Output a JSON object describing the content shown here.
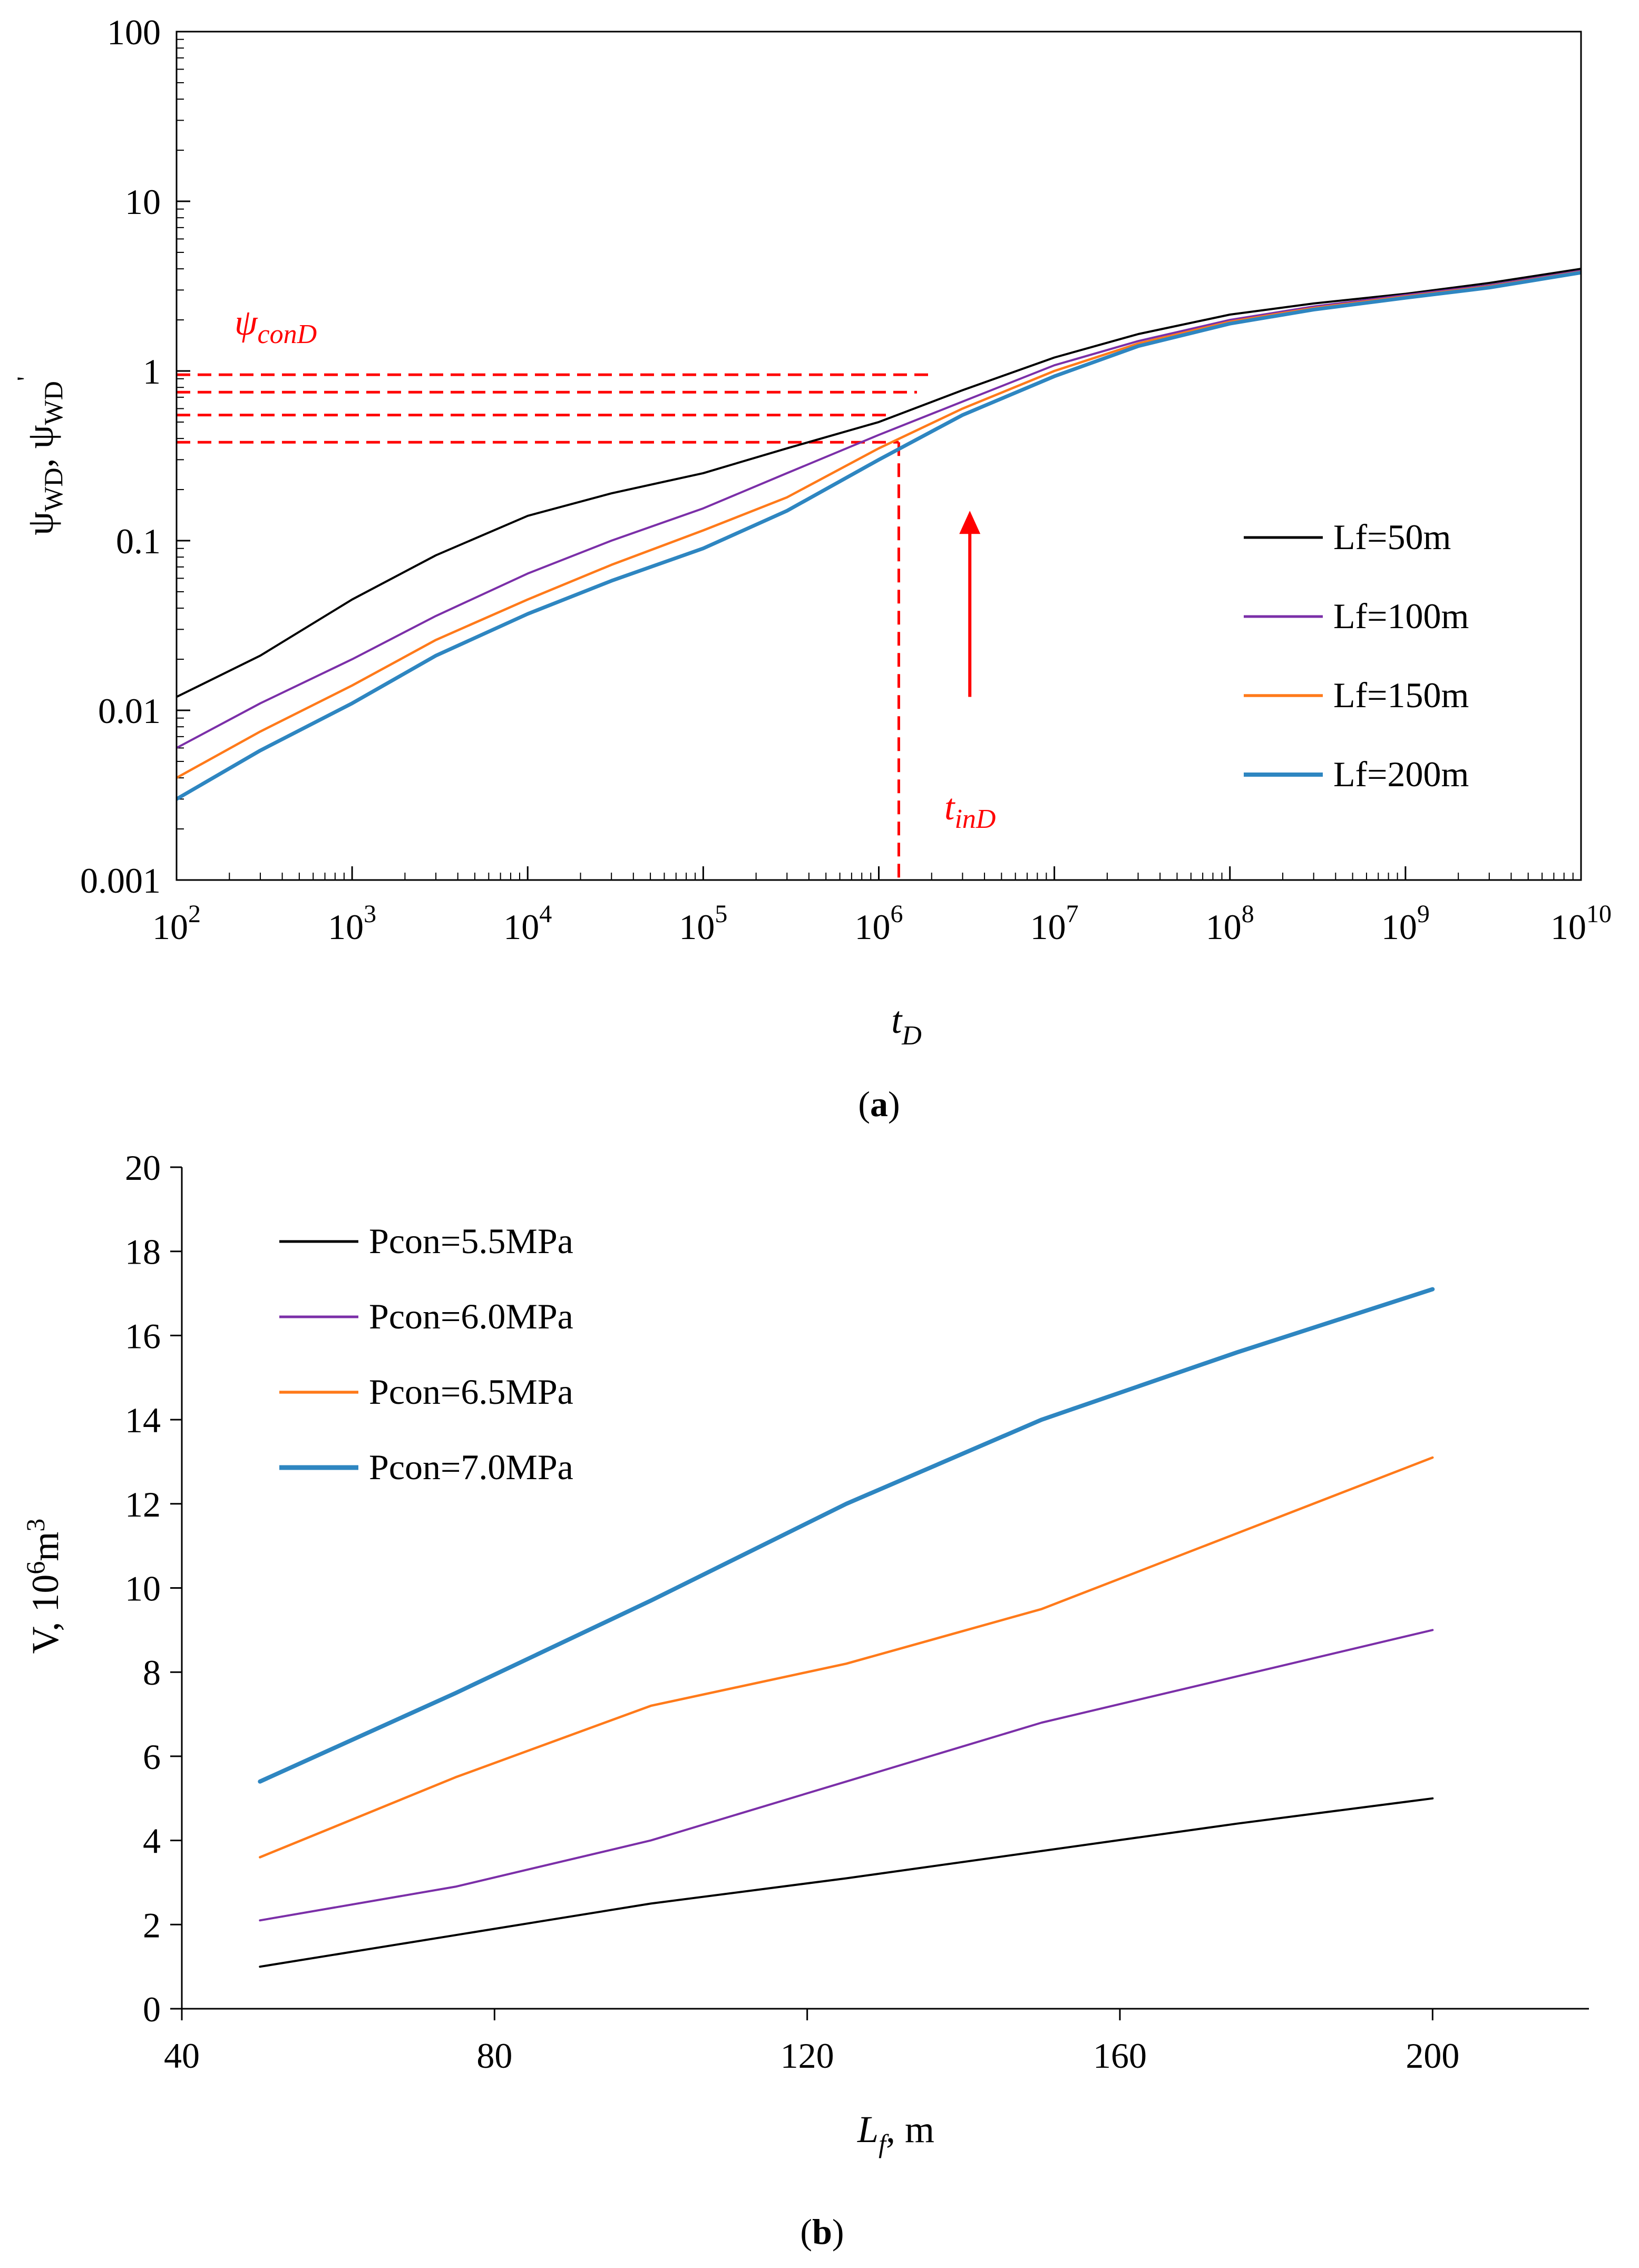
{
  "chart_data": [
    {
      "panel": "(a)",
      "panel_letter": "a",
      "type": "line",
      "scale": "log-log",
      "xlabel": "t",
      "xlabel_sub": "D",
      "ylabel": "ψWD, ψWD'",
      "ylabel_parts": {
        "psi1": "ψ",
        "sub1": "WD",
        "sep": ", ",
        "psi2": "ψ",
        "sub2": "WD",
        "prime": "'"
      },
      "xlim": [
        100,
        10000000000
      ],
      "ylim": [
        0.001,
        100
      ],
      "x_ticks": [
        {
          "value": 100,
          "base": "10",
          "exp": "2"
        },
        {
          "value": 1000,
          "base": "10",
          "exp": "3"
        },
        {
          "value": 10000,
          "base": "10",
          "exp": "4"
        },
        {
          "value": 100000,
          "base": "10",
          "exp": "5"
        },
        {
          "value": 1000000,
          "base": "10",
          "exp": "6"
        },
        {
          "value": 10000000,
          "base": "10",
          "exp": "7"
        },
        {
          "value": 100000000,
          "base": "10",
          "exp": "8"
        },
        {
          "value": 1000000000,
          "base": "10",
          "exp": "9"
        },
        {
          "value": 10000000000,
          "base": "10",
          "exp": "10"
        }
      ],
      "y_ticks": [
        {
          "value": 0.001,
          "label": "0.001"
        },
        {
          "value": 0.01,
          "label": "0.01"
        },
        {
          "value": 0.1,
          "label": "0.1"
        },
        {
          "value": 1,
          "label": "1"
        },
        {
          "value": 10,
          "label": "10"
        },
        {
          "value": 100,
          "label": "100"
        }
      ],
      "series": [
        {
          "name": "Lf=50m",
          "color": "#000000",
          "width": 4,
          "x": [
            100,
            300,
            1000,
            3000,
            10000,
            30000,
            100000,
            300000,
            1000000,
            3000000,
            10000000,
            30000000,
            100000000,
            300000000,
            1000000000,
            3000000000,
            10000000000
          ],
          "y": [
            0.012,
            0.021,
            0.045,
            0.082,
            0.14,
            0.19,
            0.25,
            0.35,
            0.5,
            0.77,
            1.2,
            1.65,
            2.15,
            2.5,
            2.85,
            3.3,
            4.0
          ]
        },
        {
          "name": "Lf=100m",
          "color": "#7b2fa8",
          "width": 4,
          "x": [
            100,
            300,
            1000,
            3000,
            10000,
            30000,
            100000,
            300000,
            1000000,
            3000000,
            10000000,
            30000000,
            100000000,
            300000000,
            1000000000,
            3000000000,
            10000000000
          ],
          "y": [
            0.006,
            0.011,
            0.02,
            0.036,
            0.064,
            0.1,
            0.155,
            0.25,
            0.42,
            0.66,
            1.08,
            1.5,
            2.0,
            2.4,
            2.8,
            3.2,
            3.9
          ]
        },
        {
          "name": "Lf=150m",
          "color": "#ff7a1a",
          "width": 4.5,
          "x": [
            100,
            300,
            1000,
            3000,
            10000,
            30000,
            100000,
            300000,
            1000000,
            3000000,
            10000000,
            30000000,
            100000000,
            300000000,
            1000000000,
            3000000000,
            10000000000
          ],
          "y": [
            0.004,
            0.0075,
            0.014,
            0.026,
            0.045,
            0.072,
            0.115,
            0.18,
            0.35,
            0.6,
            1.0,
            1.45,
            1.95,
            2.35,
            2.75,
            3.15,
            3.85
          ]
        },
        {
          "name": "Lf=200m",
          "color": "#2e86c1",
          "width": 7,
          "x": [
            100,
            300,
            1000,
            3000,
            10000,
            30000,
            100000,
            300000,
            1000000,
            3000000,
            10000000,
            30000000,
            100000000,
            300000000,
            1000000000,
            3000000000,
            10000000000
          ],
          "y": [
            0.003,
            0.0058,
            0.011,
            0.021,
            0.037,
            0.058,
            0.09,
            0.15,
            0.3,
            0.55,
            0.93,
            1.4,
            1.9,
            2.3,
            2.7,
            3.1,
            3.8
          ]
        }
      ],
      "annotations": {
        "psi_con_label": {
          "main": "ψ",
          "sub": "conD"
        },
        "t_in_label": {
          "main": "t",
          "sub": "inD"
        },
        "dashed_levels": [
          0.38,
          0.55,
          0.75,
          0.95
        ],
        "t_in_value": 1300000,
        "arrow_x_value": 3300000,
        "arrow_y_range": [
          0.012,
          0.15
        ]
      },
      "legend_position": "lower-right"
    },
    {
      "panel": "(b)",
      "panel_letter": "b",
      "type": "line",
      "scale": "linear",
      "xlabel_parts": {
        "main": "L",
        "sub": "f",
        "rest": ", m"
      },
      "ylabel_parts": {
        "main": "V, 10",
        "sup": "6",
        "mid": "m",
        "sup2": "3"
      },
      "xlim": [
        40,
        220
      ],
      "ylim": [
        0,
        20
      ],
      "x_ticks": [
        40,
        80,
        120,
        160,
        200
      ],
      "y_ticks": [
        0,
        2,
        4,
        6,
        8,
        10,
        12,
        14,
        16,
        18,
        20
      ],
      "series": [
        {
          "name": "Pcon=5.5MPa",
          "color": "#000000",
          "width": 4,
          "x": [
            50,
            75,
            100,
            125,
            150,
            175,
            200
          ],
          "y": [
            1.0,
            1.75,
            2.5,
            3.1,
            3.75,
            4.4,
            5.0
          ]
        },
        {
          "name": "Pcon=6.0MPa",
          "color": "#7b2fa8",
          "width": 4,
          "x": [
            50,
            75,
            100,
            125,
            150,
            175,
            200
          ],
          "y": [
            2.1,
            2.9,
            4.0,
            5.4,
            6.8,
            7.9,
            9.0
          ]
        },
        {
          "name": "Pcon=6.5MPa",
          "color": "#ff7a1a",
          "width": 4.5,
          "x": [
            50,
            75,
            100,
            125,
            150,
            175,
            200
          ],
          "y": [
            3.6,
            5.5,
            7.2,
            8.2,
            9.5,
            11.3,
            13.1
          ]
        },
        {
          "name": "Pcon=7.0MPa",
          "color": "#2e86c1",
          "width": 8,
          "x": [
            50,
            75,
            100,
            125,
            150,
            175,
            200
          ],
          "y": [
            5.4,
            7.5,
            9.7,
            12.0,
            14.0,
            15.6,
            17.1
          ]
        }
      ],
      "legend_position": "top-left"
    }
  ]
}
